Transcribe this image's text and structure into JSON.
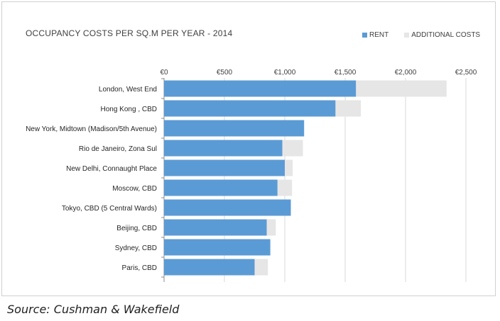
{
  "chart_data": {
    "type": "bar",
    "orientation": "horizontal",
    "stacked": true,
    "title": "OCCUPANCY COSTS PER SQ.M PER YEAR - 2014",
    "categories": [
      "London, West End",
      "Hong Kong , CBD",
      "New York, Midtown (Madison/5th Avenue)",
      "Rio de Janeiro, Zona Sul",
      "New Delhi, Connaught Place",
      "Moscow, CBD",
      "Tokyo, CBD (5 Central Wards)",
      "Beijing, CBD",
      "Sydney, CBD",
      "Paris, CBD"
    ],
    "series": [
      {
        "name": "RENT",
        "color": "#5b9bd5",
        "values": [
          1590,
          1420,
          1160,
          980,
          1000,
          940,
          1050,
          850,
          880,
          750
        ]
      },
      {
        "name": "ADDITIONAL COSTS",
        "color": "#e7e6e6",
        "values": [
          750,
          210,
          0,
          170,
          65,
          120,
          0,
          75,
          0,
          110
        ]
      }
    ],
    "xlim": [
      0,
      2500
    ],
    "xticks": [
      {
        "value": 0,
        "label": "€0"
      },
      {
        "value": 500,
        "label": "€500"
      },
      {
        "value": 1000,
        "label": "€1,000"
      },
      {
        "value": 1500,
        "label": "€1,500"
      },
      {
        "value": 2000,
        "label": "€2,000"
      },
      {
        "value": 2500,
        "label": "€2,500"
      }
    ],
    "xaxis_position": "top",
    "grid": true,
    "legend_position": "top-right"
  },
  "source": "Source: Cushman & Wakefield"
}
